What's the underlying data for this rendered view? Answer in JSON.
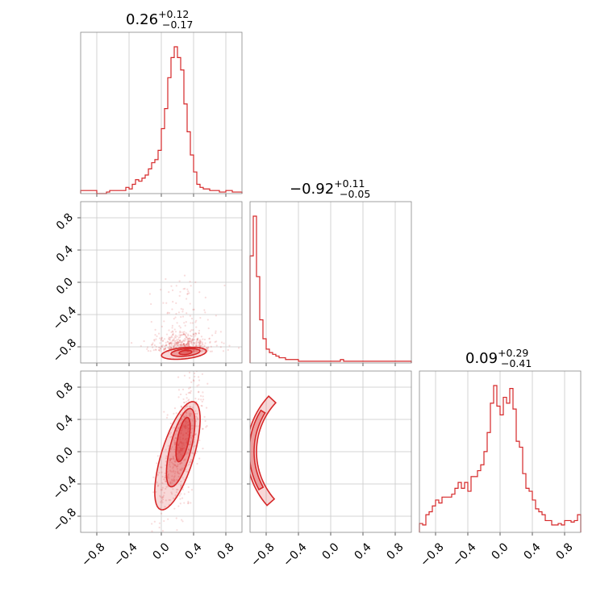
{
  "chart_data": {
    "type": "corner",
    "color": "#d62728",
    "parameters": [
      {
        "index": 0,
        "title_value": "0.26",
        "title_plus": "+0.12",
        "title_minus": "−0.17"
      },
      {
        "index": 1,
        "title_value": "−0.92",
        "title_plus": "+0.11",
        "title_minus": "−0.05"
      },
      {
        "index": 2,
        "title_value": "0.09",
        "title_plus": "+0.29",
        "title_minus": "−0.41"
      }
    ],
    "axis_range": [
      -1.0,
      1.0
    ],
    "ticks": [
      -0.8,
      -0.4,
      0.0,
      0.4,
      0.8
    ],
    "tick_labels": [
      "−0.8",
      "−0.4",
      "0.0",
      "0.4",
      "0.8"
    ],
    "grid": true,
    "histograms": [
      {
        "param": 0,
        "bin_edges_start": -1.0,
        "bin_width": 0.04,
        "counts": [
          0.02,
          0.02,
          0.02,
          0.02,
          0.02,
          0,
          0,
          0,
          0.01,
          0.02,
          0.02,
          0.02,
          0.02,
          0.02,
          0.04,
          0.03,
          0.06,
          0.09,
          0.08,
          0.1,
          0.12,
          0.16,
          0.2,
          0.22,
          0.28,
          0.42,
          0.55,
          0.75,
          0.88,
          0.95,
          0.88,
          0.8,
          0.58,
          0.4,
          0.25,
          0.14,
          0.06,
          0.04,
          0.03,
          0.03,
          0.02,
          0.02,
          0.02,
          0.01,
          0.01,
          0.02,
          0.02,
          0.01,
          0.01,
          0.01
        ]
      },
      {
        "param": 1,
        "bin_edges_start": -1.0,
        "bin_width": 0.04,
        "counts": [
          0.62,
          0.85,
          0.5,
          0.25,
          0.14,
          0.08,
          0.06,
          0.05,
          0.04,
          0.03,
          0.03,
          0.02,
          0.02,
          0.02,
          0.02,
          0.01,
          0.01,
          0.01,
          0.01,
          0.01,
          0.01,
          0.01,
          0.01,
          0.01,
          0.01,
          0.01,
          0.01,
          0.01,
          0.02,
          0.01,
          0.01,
          0.01,
          0.01,
          0.01,
          0.01,
          0.01,
          0.01,
          0.01,
          0.01,
          0.01,
          0.01,
          0.01,
          0.01,
          0.01,
          0.01,
          0.01,
          0.01,
          0.01,
          0.01,
          0.01
        ]
      },
      {
        "param": 2,
        "bin_edges_start": -1.0,
        "bin_width": 0.04,
        "counts": [
          0.06,
          0.05,
          0.12,
          0.14,
          0.18,
          0.22,
          0.2,
          0.24,
          0.24,
          0.24,
          0.26,
          0.3,
          0.34,
          0.3,
          0.34,
          0.28,
          0.38,
          0.38,
          0.42,
          0.46,
          0.55,
          0.68,
          0.88,
          1.0,
          0.86,
          0.8,
          0.92,
          0.88,
          0.98,
          0.84,
          0.62,
          0.58,
          0.4,
          0.3,
          0.28,
          0.22,
          0.16,
          0.14,
          0.12,
          0.08,
          0.08,
          0.05,
          0.05,
          0.06,
          0.05,
          0.08,
          0.08,
          0.07,
          0.08,
          0.12
        ]
      }
    ],
    "scatter_panels": [
      {
        "x_param": 0,
        "y_param": 1
      },
      {
        "x_param": 0,
        "y_param": 2
      },
      {
        "x_param": 1,
        "y_param": 2
      }
    ]
  }
}
